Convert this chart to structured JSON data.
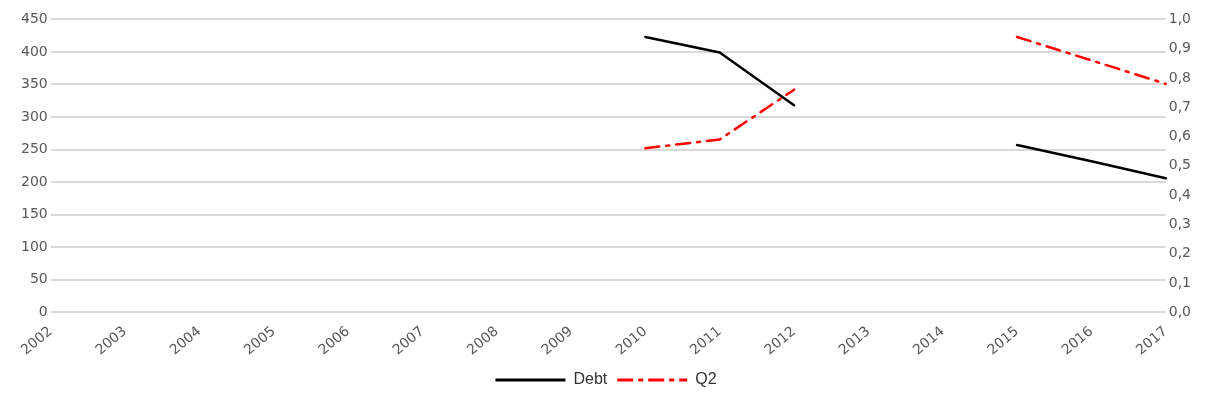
{
  "chart_data": {
    "type": "line",
    "categories": [
      "2002",
      "2003",
      "2004",
      "2005",
      "2006",
      "2007",
      "2008",
      "2009",
      "2010",
      "2011",
      "2012",
      "2013",
      "2014",
      "2015",
      "2016",
      "2017"
    ],
    "series": [
      {
        "name": "Debt",
        "color": "#000000",
        "line_style": "solid",
        "values": [
          null,
          null,
          null,
          null,
          null,
          null,
          null,
          null,
          423,
          399,
          318,
          null,
          null,
          257,
          232,
          206
        ]
      },
      {
        "name": "Q2",
        "color": "#ff0000",
        "line_style": "dashed",
        "axis": "y2",
        "values": [
          null,
          null,
          null,
          null,
          null,
          null,
          null,
          null,
          0.56,
          0.59,
          0.76,
          null,
          null,
          0.94,
          0.86,
          0.78
        ]
      }
    ],
    "ylim": [
      0,
      450
    ],
    "yticks": [
      0,
      50,
      100,
      150,
      200,
      250,
      300,
      350,
      400,
      450
    ],
    "y2lim": [
      0,
      1
    ],
    "y2ticks": [
      {
        "value": 0,
        "label": "0,0"
      },
      {
        "value": 0.1,
        "label": "0,1"
      },
      {
        "value": 0.2,
        "label": "0,2"
      },
      {
        "value": 0.3,
        "label": "0,3"
      },
      {
        "value": 0.4,
        "label": "0,4"
      },
      {
        "value": 0.5,
        "label": "0,5"
      },
      {
        "value": 0.6,
        "label": "0,6"
      },
      {
        "value": 0.7,
        "label": "0,7"
      },
      {
        "value": 0.8,
        "label": "0,8"
      },
      {
        "value": 0.9,
        "label": "0,9"
      },
      {
        "value": 1,
        "label": "1,0"
      }
    ],
    "grid": "y",
    "legend": "bottom",
    "marker": "none"
  }
}
